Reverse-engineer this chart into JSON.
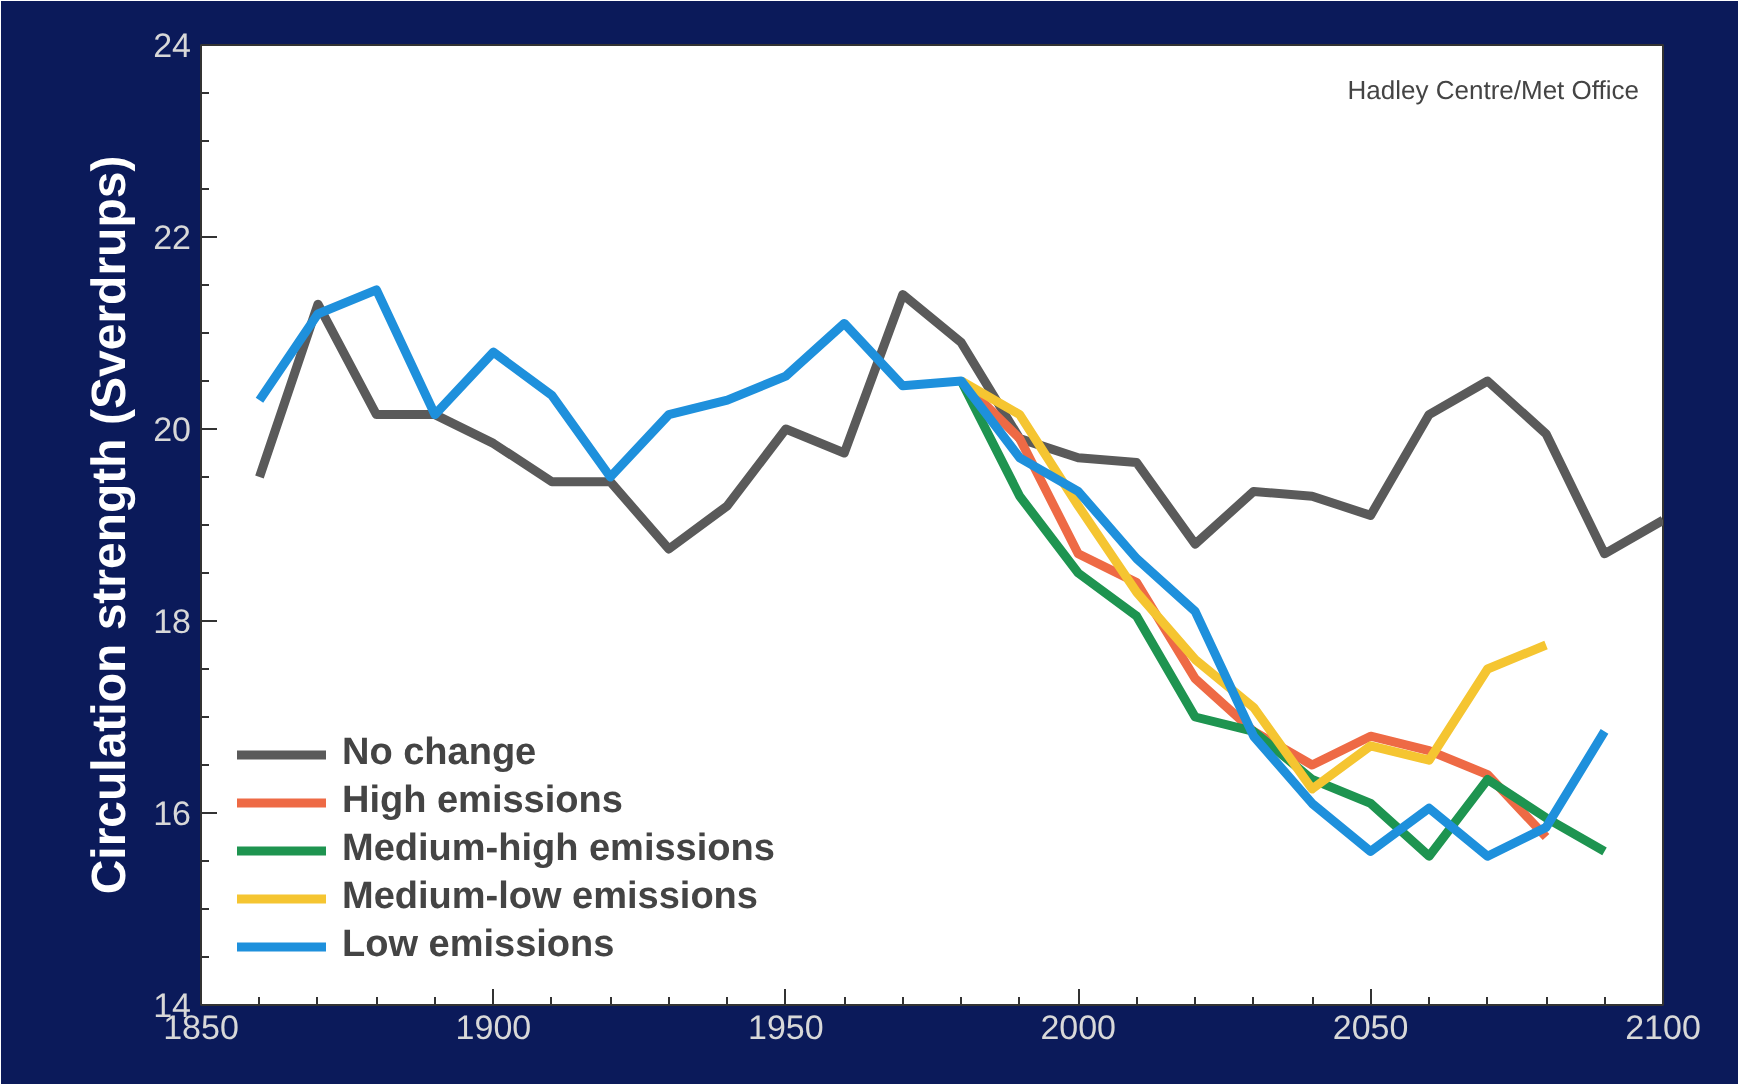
{
  "chart_data": {
    "type": "line",
    "ylabel": "Circulation strength (Sverdrups)",
    "annotations": [
      "Hadley Centre/Met Office"
    ],
    "xlim": [
      1850,
      2100
    ],
    "xticks": [
      1850,
      1900,
      1950,
      2000,
      2050,
      2100
    ],
    "ylim": [
      14,
      24
    ],
    "yticks": [
      14,
      16,
      18,
      20,
      22,
      24
    ],
    "grid": false,
    "legend": "bottom left",
    "marker": "none",
    "line_style": "solid",
    "series": [
      {
        "name": "No change",
        "color": "#5a5a5a",
        "x": [
          1860,
          1870,
          1880,
          1890,
          1900,
          1910,
          1920,
          1930,
          1940,
          1950,
          1960,
          1970,
          1980,
          1990,
          2000,
          2010,
          2020,
          2030,
          2040,
          2050,
          2060,
          2070,
          2080,
          2090,
          2100
        ],
        "values": [
          19.5,
          21.3,
          20.15,
          20.15,
          19.85,
          19.45,
          19.45,
          18.75,
          19.2,
          20.0,
          19.75,
          21.4,
          20.9,
          19.9,
          19.7,
          19.65,
          18.8,
          19.35,
          19.3,
          19.1,
          20.15,
          20.5,
          19.95,
          18.7,
          19.05
        ]
      },
      {
        "name": "High emissions",
        "color": "#ee6a45",
        "x": [
          1980,
          1990,
          2000,
          2010,
          2020,
          2030,
          2040,
          2050,
          2060,
          2070,
          2080
        ],
        "values": [
          20.5,
          19.9,
          18.7,
          18.4,
          17.4,
          16.85,
          16.5,
          16.8,
          16.65,
          16.4,
          15.75
        ]
      },
      {
        "name": "Medium-high emissions",
        "color": "#1e9450",
        "x": [
          1980,
          1990,
          2000,
          2010,
          2020,
          2030,
          2040,
          2050,
          2060,
          2070,
          2080,
          2090
        ],
        "values": [
          20.5,
          19.3,
          18.5,
          18.05,
          17.0,
          16.85,
          16.35,
          16.1,
          15.55,
          16.35,
          15.95,
          15.6
        ]
      },
      {
        "name": "Medium-low emissions",
        "color": "#f5c531",
        "x": [
          1980,
          1990,
          2000,
          2010,
          2020,
          2030,
          2040,
          2050,
          2060,
          2070,
          2080
        ],
        "values": [
          20.5,
          20.15,
          19.2,
          18.3,
          17.6,
          17.1,
          16.25,
          16.7,
          16.55,
          17.5,
          17.75
        ]
      },
      {
        "name": "Low emissions",
        "color": "#1e90dc",
        "x": [
          1860,
          1870,
          1880,
          1890,
          1900,
          1910,
          1920,
          1930,
          1940,
          1950,
          1960,
          1970,
          1980,
          1990,
          2000,
          2010,
          2020,
          2030,
          2040,
          2050,
          2060,
          2070,
          2080,
          2090
        ],
        "values": [
          20.3,
          21.2,
          21.45,
          20.15,
          20.8,
          20.35,
          19.5,
          20.15,
          20.3,
          20.55,
          21.1,
          20.45,
          20.5,
          19.7,
          19.35,
          18.65,
          18.1,
          16.8,
          16.1,
          15.6,
          16.05,
          15.55,
          15.85,
          16.85
        ]
      }
    ]
  }
}
